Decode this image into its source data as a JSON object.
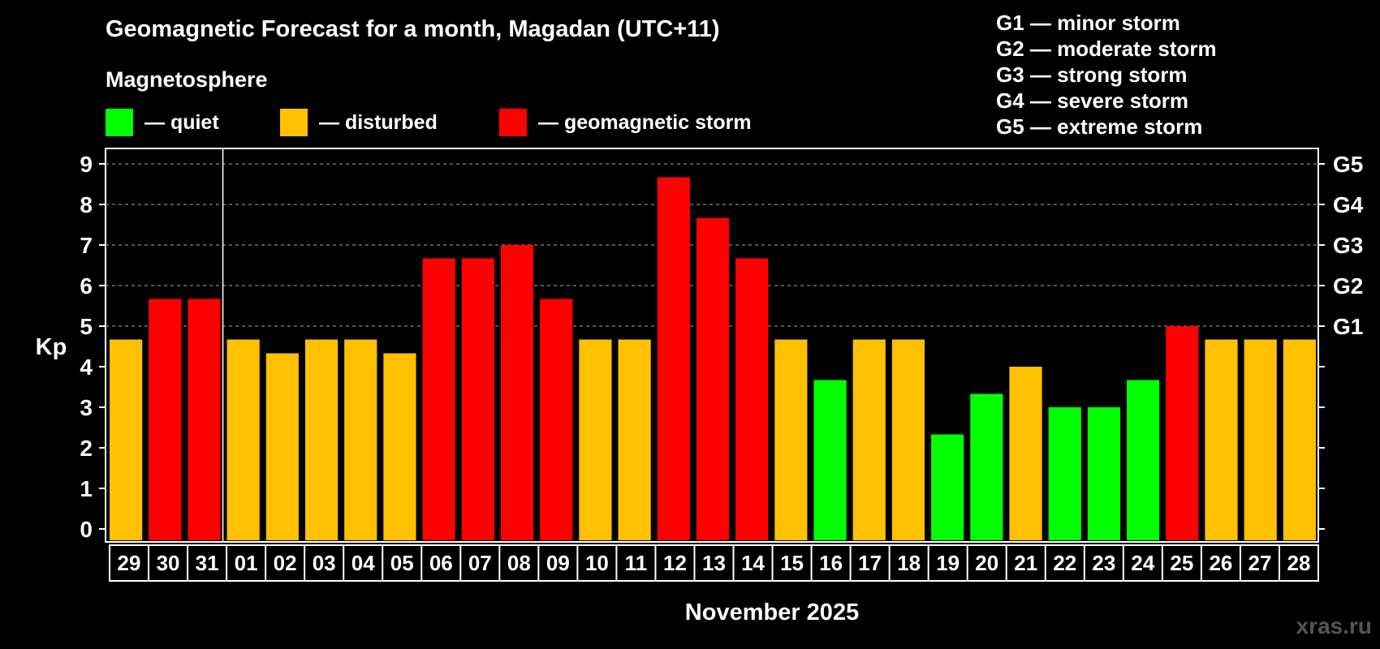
{
  "title": "Geomagnetic Forecast for a month, Magadan (UTC+11)",
  "legend": {
    "heading": "Magnetosphere",
    "items": [
      {
        "label": "— quiet",
        "color": "#00ff00"
      },
      {
        "label": "— disturbed",
        "color": "#ffc000"
      },
      {
        "label": "— geomagnetic storm",
        "color": "#ff0000"
      }
    ]
  },
  "storm_scale": [
    "G1 — minor storm",
    "G2 — moderate storm",
    "G3 — strong storm",
    "G4 — severe storm",
    "G5 — extreme storm"
  ],
  "watermark": "xras.ru",
  "chart_data": {
    "type": "bar",
    "title": "Geomagnetic Forecast for a month, Magadan (UTC+11)",
    "xlabel": "November 2025",
    "ylabel": "Kp",
    "ylim": [
      0,
      9
    ],
    "yticks": [
      "0",
      "1",
      "2",
      "3",
      "4",
      "5",
      "6",
      "7",
      "8",
      "9"
    ],
    "right_axis": [
      {
        "kp": 5,
        "label": "G1"
      },
      {
        "kp": 6,
        "label": "G2"
      },
      {
        "kp": 7,
        "label": "G3"
      },
      {
        "kp": 8,
        "label": "G4"
      },
      {
        "kp": 9,
        "label": "G5"
      }
    ],
    "grid": "dashed horizontal at Kp 5-9",
    "categories": [
      "29",
      "30",
      "31",
      "01",
      "02",
      "03",
      "04",
      "05",
      "06",
      "07",
      "08",
      "09",
      "10",
      "11",
      "12",
      "13",
      "14",
      "15",
      "16",
      "17",
      "18",
      "19",
      "20",
      "21",
      "22",
      "23",
      "24",
      "25",
      "26",
      "27",
      "28"
    ],
    "values": [
      4.67,
      5.67,
      5.67,
      4.67,
      4.33,
      4.67,
      4.67,
      4.33,
      6.67,
      6.67,
      7.0,
      5.67,
      4.67,
      4.67,
      8.67,
      7.67,
      6.67,
      4.67,
      3.67,
      4.67,
      4.67,
      2.33,
      3.33,
      4.0,
      3.0,
      3.0,
      3.67,
      5.0,
      4.67,
      4.67,
      4.67
    ],
    "colors": [
      "#ffc000",
      "#ff0000",
      "#ff0000",
      "#ffc000",
      "#ffc000",
      "#ffc000",
      "#ffc000",
      "#ffc000",
      "#ff0000",
      "#ff0000",
      "#ff0000",
      "#ff0000",
      "#ffc000",
      "#ffc000",
      "#ff0000",
      "#ff0000",
      "#ff0000",
      "#ffc000",
      "#00ff00",
      "#ffc000",
      "#ffc000",
      "#00ff00",
      "#00ff00",
      "#ffc000",
      "#00ff00",
      "#00ff00",
      "#00ff00",
      "#ff0000",
      "#ffc000",
      "#ffc000",
      "#ffc000"
    ],
    "month_separator_after": "31"
  }
}
